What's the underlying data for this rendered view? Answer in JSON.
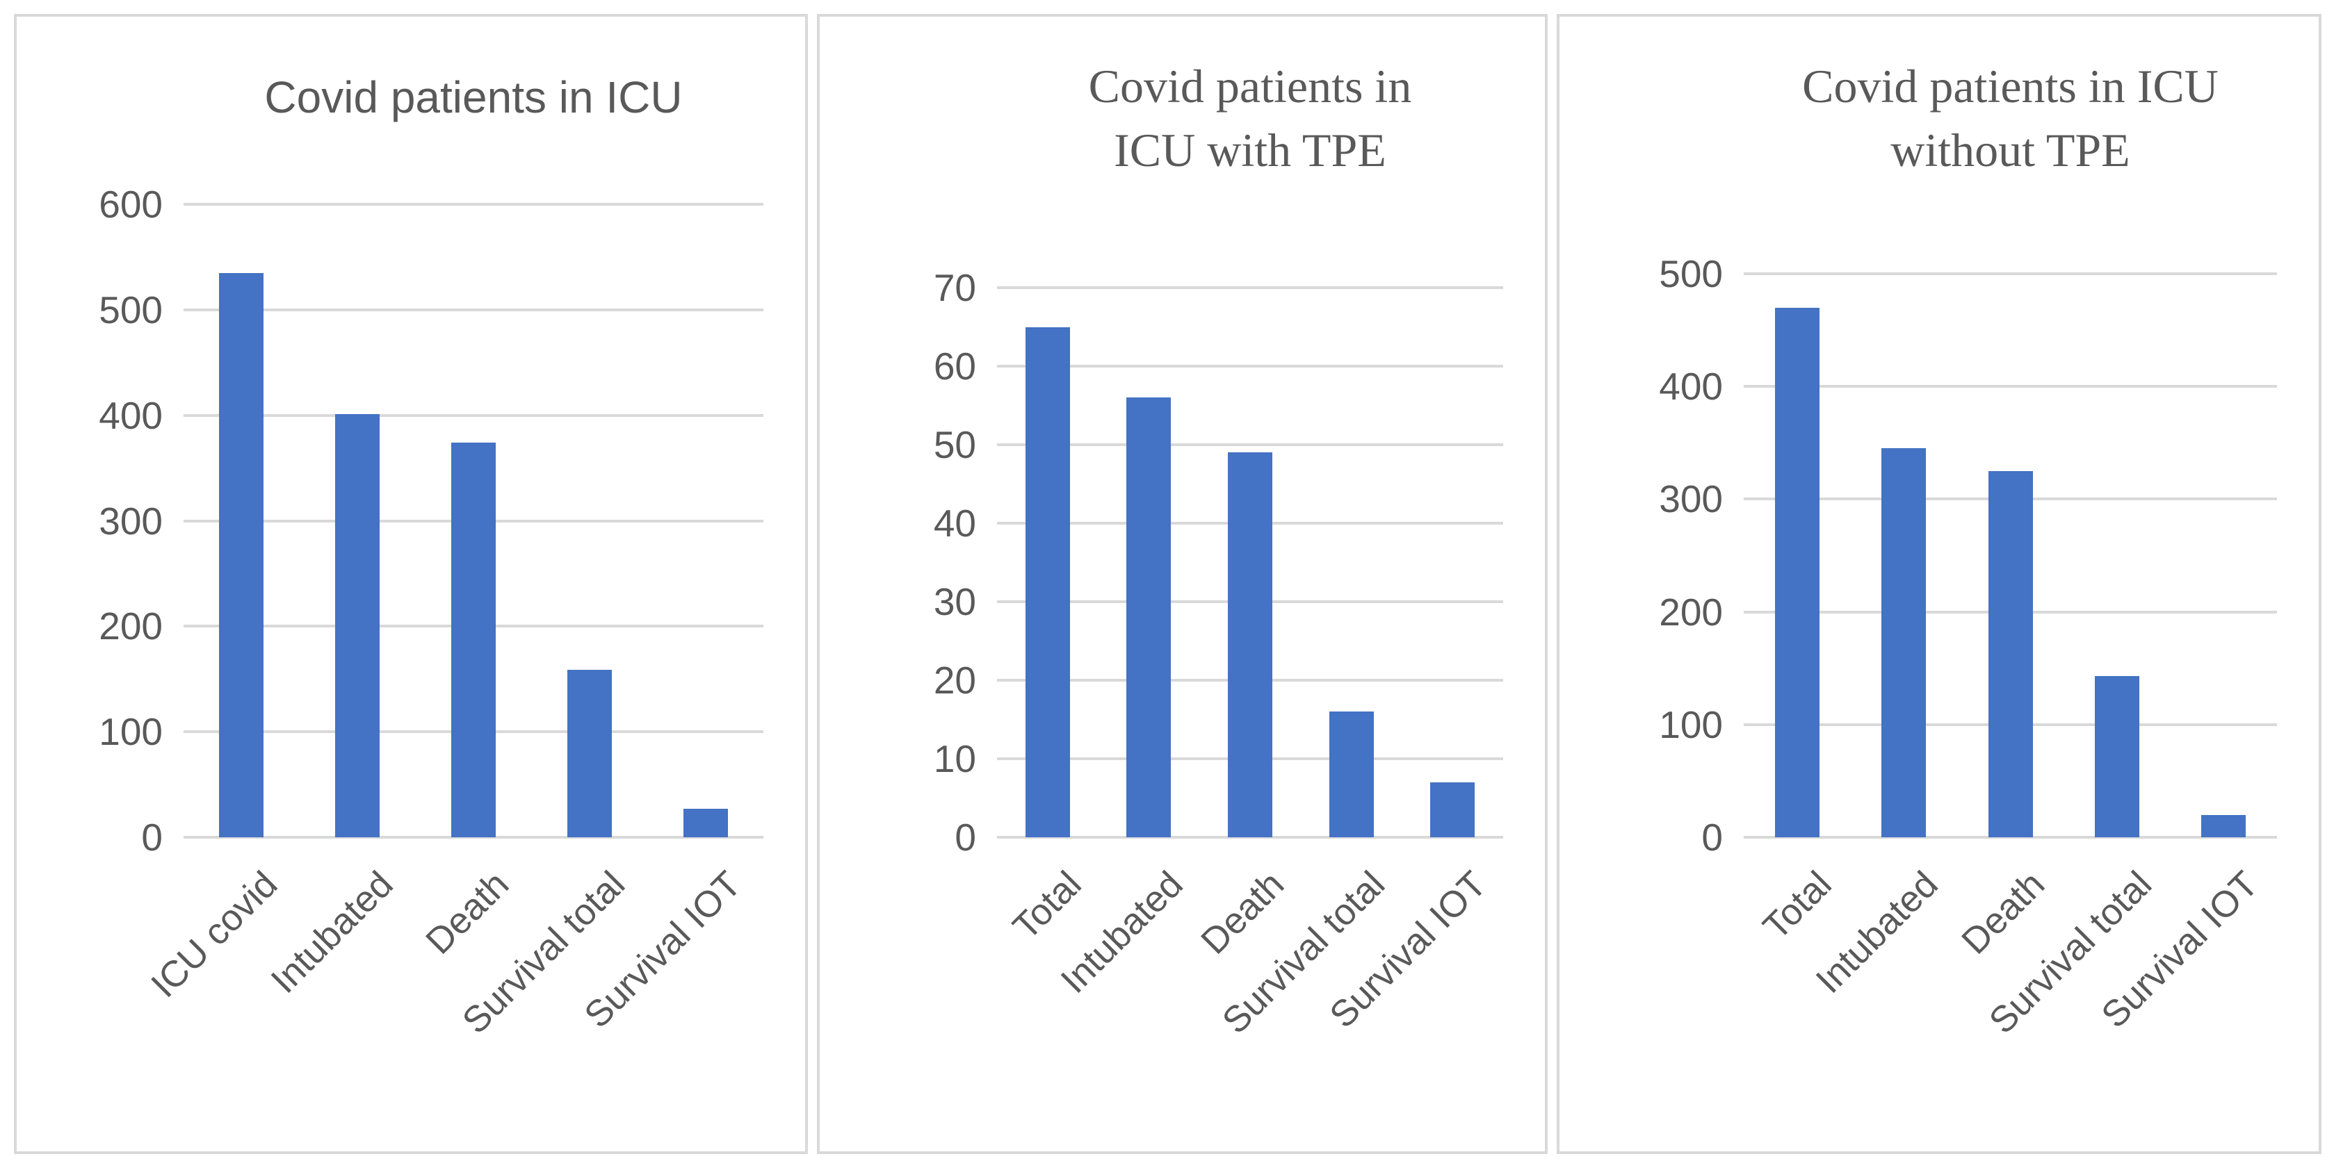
{
  "figure": {
    "background": "#FFFFFF",
    "panel_border_color": "#D9D9D9"
  },
  "chart_data": [
    {
      "type": "bar",
      "title": "Covid patients in ICU",
      "title_lines": [
        "Covid patients in ICU"
      ],
      "title_style": "sans",
      "categories": [
        "ICU covid",
        "Intubated",
        "Death",
        "Survival total",
        "Survival IOT"
      ],
      "values": [
        535,
        401,
        374,
        159,
        27
      ],
      "xlabel": "",
      "ylabel": "",
      "ylim": [
        0,
        600
      ],
      "yticks": [
        0,
        100,
        200,
        300,
        400,
        500,
        600
      ],
      "grid": true,
      "legend": "none",
      "bar_color": "#4472C4",
      "gridline_color": "#D9D9D9",
      "text_color": "#595959"
    },
    {
      "type": "bar",
      "title": "Covid patients in ICU with TPE",
      "title_lines": [
        "Covid patients in",
        "ICU with TPE"
      ],
      "title_style": "serif",
      "categories": [
        "Total",
        "Intubated",
        "Death",
        "Survival total",
        "Survival IOT"
      ],
      "values": [
        65,
        56,
        49,
        16,
        7
      ],
      "xlabel": "",
      "ylabel": "",
      "ylim": [
        0,
        70
      ],
      "yticks": [
        0,
        10,
        20,
        30,
        40,
        50,
        60,
        70
      ],
      "grid": true,
      "legend": "none",
      "bar_color": "#4472C4",
      "gridline_color": "#D9D9D9",
      "text_color": "#595959"
    },
    {
      "type": "bar",
      "title": "Covid patients in ICU without TPE",
      "title_lines": [
        "Covid patients in ICU",
        "without TPE"
      ],
      "title_style": "serif",
      "categories": [
        "Total",
        "Intubated",
        "Death",
        "Survival total",
        "Survival IOT"
      ],
      "values": [
        470,
        345,
        325,
        143,
        20
      ],
      "xlabel": "",
      "ylabel": "",
      "ylim": [
        0,
        500
      ],
      "yticks": [
        0,
        100,
        200,
        300,
        400,
        500
      ],
      "grid": true,
      "legend": "none",
      "bar_color": "#4472C4",
      "gridline_color": "#D9D9D9",
      "text_color": "#595959"
    }
  ]
}
